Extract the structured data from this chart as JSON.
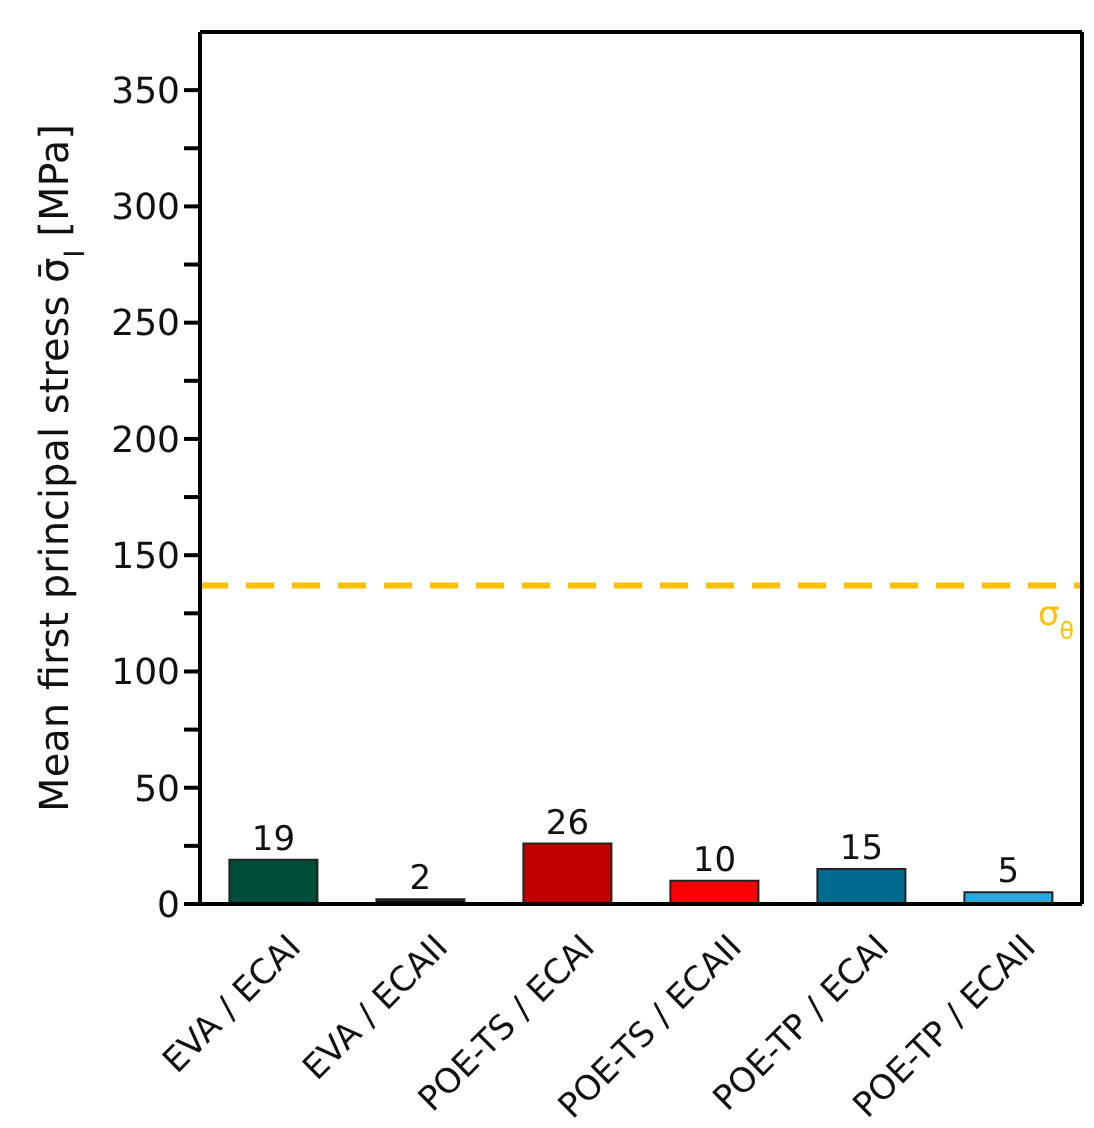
{
  "chart_data": {
    "type": "bar",
    "ylabel": "Mean first principal stress σ̄$_{I}$ [MPa]",
    "categories": [
      "EVA / ECAI",
      "EVA / ECAII",
      "POE-TS / ECAI",
      "POE-TS / ECAII",
      "POE-TP / ECAI",
      "POE-TP / ECAII"
    ],
    "values": [
      19,
      2,
      26,
      10,
      15,
      5
    ],
    "colors": [
      "#004d3a",
      "#1a1a1a",
      "#c00000",
      "#ff0000",
      "#006b8f",
      "#29a8dc"
    ],
    "data_labels": true,
    "ylim": [
      0,
      375
    ],
    "yticks": [
      0,
      {
        "value": 25,
        "label": null
      },
      50,
      {
        "value": 75,
        "label": null
      },
      100,
      {
        "value": 125,
        "label": null
      },
      150,
      {
        "value": 175,
        "label": null
      },
      200,
      {
        "value": 225,
        "label": null
      },
      250,
      {
        "value": 275,
        "label": null
      },
      300,
      {
        "value": 325,
        "label": null
      },
      350
    ],
    "ref_lines": [
      {
        "axis": "y",
        "value": 137,
        "label": "σ$_{θ}$",
        "color": "#ffc000",
        "line_style": "dashed"
      }
    ],
    "grid": false
  }
}
